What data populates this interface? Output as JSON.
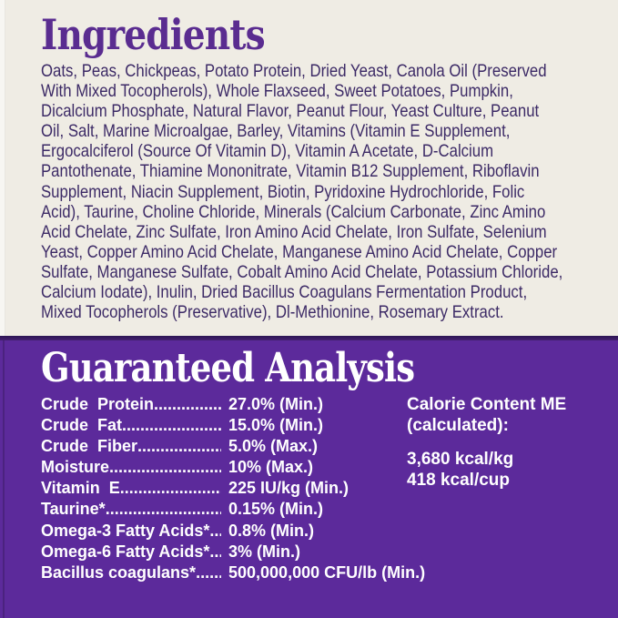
{
  "colors": {
    "cream_background": "#efece4",
    "heading_purple": "#5a2c90",
    "ingredient_text": "#3c2a66",
    "panel_purple": "#5c2a9b",
    "divider_dark_purple": "#2c1452",
    "analysis_text": "#ffffff"
  },
  "ingredients_section": {
    "heading": "Ingredients",
    "lines": [
      "Oats, Peas, Chickpeas, Potato Protein, Dried Yeast, Canola Oil (Preserved",
      "With Mixed Tocopherols), Whole Flaxseed, Sweet Potatoes, Pumpkin,",
      "Dicalcium Phosphate, Natural Flavor, Peanut Flour, Yeast Culture, Peanut",
      "Oil, Salt, Marine Microalgae, Barley, Vitamins (Vitamin E Supplement,",
      "Ergocalciferol (Source Of Vitamin D), Vitamin A Acetate, D-Calcium",
      "Pantothenate, Thiamine Mononitrate, Vitamin B12 Supplement, Riboflavin",
      "Supplement, Niacin Supplement, Biotin, Pyridoxine Hydrochloride, Folic",
      "Acid), Taurine, Choline Chloride, Minerals (Calcium Carbonate, Zinc Amino",
      "Acid Chelate, Zinc Sulfate, Iron Amino Acid Chelate, Iron Sulfate, Selenium",
      "Yeast, Copper Amino Acid Chelate, Manganese Amino Acid Chelate, Copper",
      "Sulfate, Manganese Sulfate, Cobalt Amino Acid Chelate, Potassium Chloride,",
      "Calcium Iodate), Inulin, Dried Bacillus Coagulans Fermentation Product,",
      "Mixed Tocopherols (Preservative), Dl-Methionine, Rosemary Extract."
    ]
  },
  "analysis_section": {
    "heading": "Guaranteed Analysis",
    "rows": [
      {
        "label": "Crude  Protein",
        "dots": "........................",
        "value": "27.0% (Min.)"
      },
      {
        "label": "Crude  Fat",
        "dots": "..............................",
        "value": "15.0% (Min.)"
      },
      {
        "label": "Crude  Fiber",
        "dots": "............................",
        "value": "5.0% (Max.)"
      },
      {
        "label": "Moisture",
        "dots": "................................",
        "value": "10% (Max.)"
      },
      {
        "label": "Vitamin  E",
        "dots": "...............................",
        "value": "225 IU/kg (Min.)"
      },
      {
        "label": "Taurine*",
        "dots": "................................",
        "value": "0.15% (Min.)"
      },
      {
        "label": "Omega-3 Fatty Acids*",
        "dots": "............",
        "value": "0.8% (Min.)"
      },
      {
        "label": "Omega-6 Fatty Acids*",
        "dots": "............",
        "value": "3% (Min.)"
      },
      {
        "label": "Bacillus coagulans*",
        "dots": "...............",
        "value": "500,000,000 CFU/lb (Min.)"
      }
    ],
    "calorie": {
      "title_line1": "Calorie Content ME",
      "title_line2": "(calculated):",
      "values": [
        "3,680 kcal/kg",
        "418 kcal/cup"
      ]
    }
  }
}
